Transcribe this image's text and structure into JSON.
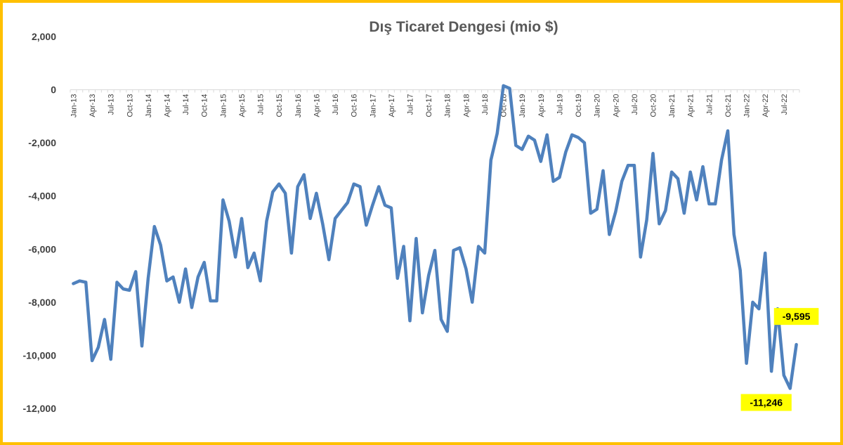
{
  "chart_data": {
    "type": "line",
    "title": "Dış Ticaret Dengesi (mio $)",
    "xlabel": "",
    "ylabel": "",
    "ylim": [
      -12000,
      2000
    ],
    "yticks": [
      2000,
      0,
      -2000,
      -4000,
      -6000,
      -8000,
      -10000,
      -12000
    ],
    "ytick_labels": [
      "2,000",
      "0",
      "-2,000",
      "-4,000",
      "-6,000",
      "-8,000",
      "-10,000",
      "-12,000"
    ],
    "grid": false,
    "legend": "none",
    "line_color": "#4f81bd",
    "label_highlight_color": "#ffff00",
    "frame_color": "#ffc000",
    "x_tick_labels": [
      "Jan-13",
      "Apr-13",
      "Jul-13",
      "Oct-13",
      "Jan-14",
      "Apr-14",
      "Jul-14",
      "Oct-14",
      "Jan-15",
      "Apr-15",
      "Jul-15",
      "Oct-15",
      "Jan-16",
      "Apr-16",
      "Jul-16",
      "Oct-16",
      "Jan-17",
      "Apr-17",
      "Jul-17",
      "Oct-17",
      "Jan-18",
      "Apr-18",
      "Jul-18",
      "Oct-18",
      "Jan-19",
      "Apr-19",
      "Jul-19",
      "Oct-19",
      "Jan-20",
      "Apr-20",
      "Jul-20",
      "Oct-20",
      "Jan-21",
      "Apr-21",
      "Jul-21",
      "Oct-21",
      "Jan-22",
      "Apr-22",
      "Jul-22"
    ],
    "x_start": "2013-01",
    "series": [
      {
        "values": [
          -7300,
          -7200,
          -7250,
          -10200,
          -9700,
          -8650,
          -10150,
          -7250,
          -7500,
          -7550,
          -6850,
          -9650,
          -7100,
          -5150,
          -5850,
          -7200,
          -7050,
          -8000,
          -6750,
          -8200,
          -7050,
          -6500,
          -7950,
          -7950,
          -4150,
          -4950,
          -6300,
          -4850,
          -6700,
          -6150,
          -7200,
          -4950,
          -3850,
          -3550,
          -3900,
          -6150,
          -3650,
          -3200,
          -4850,
          -3900,
          -5050,
          -6400,
          -4850,
          -4550,
          -4250,
          -3550,
          -3650,
          -5100,
          -4350,
          -3650,
          -4350,
          -4450,
          -7100,
          -5900,
          -8700,
          -5600,
          -8400,
          -7000,
          -6050,
          -8650,
          -9100,
          -6050,
          -5950,
          -6750,
          -8000,
          -5900,
          -6150,
          -2650,
          -1650,
          150,
          50,
          -2100,
          -2250,
          -1750,
          -1900,
          -2700,
          -1700,
          -3450,
          -3300,
          -2350,
          -1700,
          -1800,
          -2000,
          -4650,
          -4500,
          -3050,
          -5450,
          -4600,
          -3450,
          -2850,
          -2850,
          -6300,
          -4900,
          -2400,
          -5050,
          -4550,
          -3100,
          -3350,
          -4650,
          -3100,
          -4150,
          -2900,
          -4300,
          -4300,
          -2650,
          -1550,
          -5450,
          -6800,
          -10300,
          -8000,
          -8250,
          -6150,
          -10600,
          -8250,
          -10750,
          -11246,
          -9595
        ]
      }
    ],
    "data_labels": [
      {
        "month": "2022-08",
        "value": -11246,
        "text": "-11,246"
      },
      {
        "month": "2022-09",
        "value": -9595,
        "text": "-9,595"
      }
    ]
  }
}
